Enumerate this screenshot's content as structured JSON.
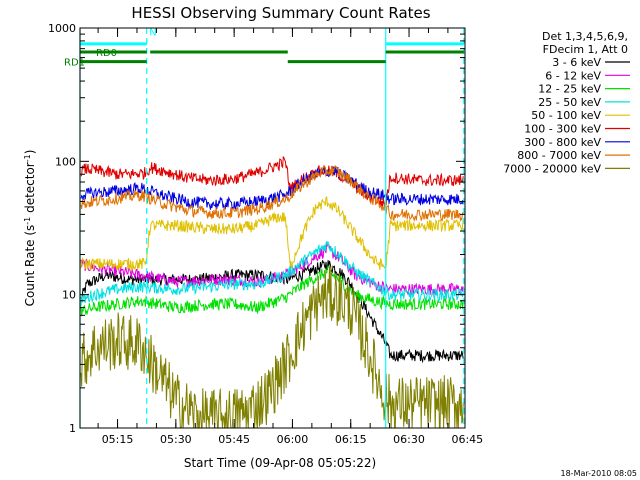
{
  "chart_data": {
    "type": "line",
    "title": "HESSI Observing Summary Count Rates",
    "xlabel": "Start Time (09-Apr-08 05:05:22)",
    "ylabel_parts": [
      "Count Rate (s",
      "-1",
      " detector",
      "-1",
      ")"
    ],
    "y_scale": "log",
    "ylim": [
      1,
      1000
    ],
    "xlim": [
      5.089,
      6.74
    ],
    "y_ticks": [
      {
        "v": 1,
        "label": "1"
      },
      {
        "v": 10,
        "label": "10"
      },
      {
        "v": 100,
        "label": "100"
      },
      {
        "v": 1000,
        "label": "1000"
      }
    ],
    "x_ticks": [
      {
        "v": 5.25,
        "label": "05:15"
      },
      {
        "v": 5.5,
        "label": "05:30"
      },
      {
        "v": 5.75,
        "label": "05:45"
      },
      {
        "v": 6.0,
        "label": "06:00"
      },
      {
        "v": 6.25,
        "label": "06:15"
      },
      {
        "v": 6.5,
        "label": "06:30"
      },
      {
        "v": 6.75,
        "label": "06:45"
      }
    ],
    "legend_header": [
      "Det 1,3,4,5,6,9,",
      "FDecim 1, Att 0"
    ],
    "legend_position": "right",
    "grid": false,
    "series": [
      {
        "name": "3 - 6 keV",
        "color": "#000000",
        "points": [
          [
            5.09,
            9
          ],
          [
            5.12,
            12
          ],
          [
            5.2,
            14
          ],
          [
            5.3,
            13
          ],
          [
            5.45,
            13
          ],
          [
            5.6,
            13
          ],
          [
            5.75,
            14
          ],
          [
            5.88,
            14
          ],
          [
            5.98,
            13
          ],
          [
            6.08,
            15
          ],
          [
            6.15,
            17
          ],
          [
            6.2,
            15
          ],
          [
            6.25,
            12
          ],
          [
            6.32,
            7.5
          ],
          [
            6.4,
            4.3
          ],
          [
            6.42,
            3.5
          ],
          [
            6.55,
            3.5
          ],
          [
            6.73,
            3.5
          ]
        ]
      },
      {
        "name": "6 - 12 keV",
        "color": "#e000e0",
        "points": [
          [
            5.09,
            17
          ],
          [
            5.15,
            16
          ],
          [
            5.25,
            15
          ],
          [
            5.35,
            14
          ],
          [
            5.5,
            12.5
          ],
          [
            5.65,
            13
          ],
          [
            5.75,
            13
          ],
          [
            5.85,
            12.5
          ],
          [
            5.97,
            14
          ],
          [
            6.05,
            17
          ],
          [
            6.15,
            22
          ],
          [
            6.2,
            19
          ],
          [
            6.27,
            14
          ],
          [
            6.35,
            12
          ],
          [
            6.42,
            11
          ],
          [
            6.55,
            11
          ],
          [
            6.73,
            11
          ]
        ]
      },
      {
        "name": "12 - 25 keV",
        "color": "#00e000",
        "points": [
          [
            5.09,
            7.5
          ],
          [
            5.15,
            8
          ],
          [
            5.25,
            8.5
          ],
          [
            5.35,
            9
          ],
          [
            5.5,
            8
          ],
          [
            5.65,
            8.5
          ],
          [
            5.75,
            8.5
          ],
          [
            5.85,
            8
          ],
          [
            5.97,
            9.5
          ],
          [
            6.05,
            12
          ],
          [
            6.15,
            15
          ],
          [
            6.2,
            13
          ],
          [
            6.27,
            10
          ],
          [
            6.35,
            9
          ],
          [
            6.42,
            8.5
          ],
          [
            6.55,
            8.5
          ],
          [
            6.73,
            8.5
          ]
        ]
      },
      {
        "name": "25 - 50 keV",
        "color": "#00e0e0",
        "points": [
          [
            5.09,
            9
          ],
          [
            5.15,
            10
          ],
          [
            5.25,
            11
          ],
          [
            5.35,
            11.5
          ],
          [
            5.5,
            11
          ],
          [
            5.65,
            11.5
          ],
          [
            5.75,
            12
          ],
          [
            5.85,
            12
          ],
          [
            5.97,
            14
          ],
          [
            6.05,
            18
          ],
          [
            6.15,
            24
          ],
          [
            6.2,
            20
          ],
          [
            6.27,
            15
          ],
          [
            6.35,
            12
          ],
          [
            6.42,
            10
          ],
          [
            6.55,
            10
          ],
          [
            6.73,
            10
          ]
        ]
      },
      {
        "name": "50 - 100 keV",
        "color": "#e0c000",
        "points": [
          [
            5.09,
            17
          ],
          [
            5.15,
            17
          ],
          [
            5.25,
            17
          ],
          [
            5.35,
            17
          ],
          [
            5.37,
            17
          ],
          [
            5.39,
            33
          ],
          [
            5.5,
            33
          ],
          [
            5.65,
            31
          ],
          [
            5.75,
            31
          ],
          [
            5.85,
            33
          ],
          [
            5.93,
            38
          ],
          [
            5.97,
            38
          ],
          [
            5.99,
            16
          ],
          [
            6.05,
            30
          ],
          [
            6.1,
            45
          ],
          [
            6.15,
            50
          ],
          [
            6.2,
            42
          ],
          [
            6.27,
            28
          ],
          [
            6.35,
            18
          ],
          [
            6.4,
            16
          ],
          [
            6.42,
            33
          ],
          [
            6.55,
            33
          ],
          [
            6.73,
            33
          ]
        ]
      },
      {
        "name": "100 - 300 keV",
        "color": "#e00000",
        "points": [
          [
            5.09,
            85
          ],
          [
            5.12,
            88
          ],
          [
            5.18,
            84
          ],
          [
            5.25,
            80
          ],
          [
            5.3,
            80
          ],
          [
            5.37,
            82
          ],
          [
            5.39,
            90
          ],
          [
            5.45,
            85
          ],
          [
            5.55,
            75
          ],
          [
            5.65,
            72
          ],
          [
            5.75,
            74
          ],
          [
            5.85,
            82
          ],
          [
            5.95,
            96
          ],
          [
            5.97,
            100
          ],
          [
            5.99,
            62
          ],
          [
            6.05,
            75
          ],
          [
            6.12,
            85
          ],
          [
            6.18,
            83
          ],
          [
            6.25,
            70
          ],
          [
            6.32,
            55
          ],
          [
            6.4,
            48
          ],
          [
            6.42,
            76
          ],
          [
            6.55,
            72
          ],
          [
            6.73,
            72
          ]
        ]
      },
      {
        "name": "300 - 800 keV",
        "color": "#0000e0",
        "points": [
          [
            5.09,
            56
          ],
          [
            5.15,
            58
          ],
          [
            5.25,
            60
          ],
          [
            5.35,
            63
          ],
          [
            5.45,
            55
          ],
          [
            5.55,
            50
          ],
          [
            5.65,
            48
          ],
          [
            5.75,
            48
          ],
          [
            5.85,
            50
          ],
          [
            5.97,
            56
          ],
          [
            6.05,
            72
          ],
          [
            6.12,
            83
          ],
          [
            6.18,
            85
          ],
          [
            6.25,
            72
          ],
          [
            6.32,
            60
          ],
          [
            6.4,
            55
          ],
          [
            6.42,
            52
          ],
          [
            6.55,
            52
          ],
          [
            6.73,
            52
          ]
        ]
      },
      {
        "name": "800 - 7000 keV",
        "color": "#e07000",
        "points": [
          [
            5.09,
            48
          ],
          [
            5.15,
            50
          ],
          [
            5.25,
            53
          ],
          [
            5.35,
            56
          ],
          [
            5.45,
            48
          ],
          [
            5.55,
            43
          ],
          [
            5.65,
            41
          ],
          [
            5.75,
            41
          ],
          [
            5.85,
            44
          ],
          [
            5.97,
            52
          ],
          [
            6.05,
            68
          ],
          [
            6.12,
            83
          ],
          [
            6.18,
            86
          ],
          [
            6.25,
            72
          ],
          [
            6.32,
            55
          ],
          [
            6.4,
            45
          ],
          [
            6.42,
            40
          ],
          [
            6.55,
            40
          ],
          [
            6.73,
            40
          ]
        ]
      },
      {
        "name": "7000 - 20000 keV",
        "color": "#808000",
        "points": [
          [
            5.09,
            3
          ],
          [
            5.15,
            4
          ],
          [
            5.25,
            4.5
          ],
          [
            5.35,
            4.2
          ],
          [
            5.4,
            3
          ],
          [
            5.45,
            2.2
          ],
          [
            5.5,
            1.6
          ],
          [
            5.6,
            1.2
          ],
          [
            5.7,
            1.2
          ],
          [
            5.8,
            1.3
          ],
          [
            5.9,
            1.8
          ],
          [
            5.97,
            3
          ],
          [
            6.05,
            6
          ],
          [
            6.12,
            9.5
          ],
          [
            6.18,
            10
          ],
          [
            6.25,
            8
          ],
          [
            6.32,
            4
          ],
          [
            6.38,
            2
          ],
          [
            6.42,
            1.5
          ],
          [
            6.55,
            1.5
          ],
          [
            6.73,
            1.5
          ]
        ]
      }
    ],
    "vertical_lines": [
      {
        "x": 5.089,
        "style": "solid",
        "color": "#00ffff"
      },
      {
        "x": 5.375,
        "style": "dashed",
        "color": "#00ffff"
      },
      {
        "x": 6.4,
        "style": "solid",
        "color": "#00ffff"
      },
      {
        "x": 6.735,
        "style": "dashed",
        "color": "#00ffff"
      }
    ],
    "flag_bars": [
      {
        "label": "",
        "color": "#00ffff",
        "y": 760,
        "segments": [
          [
            5.089,
            5.375
          ],
          [
            6.4,
            6.735
          ]
        ]
      },
      {
        "label": "RD0",
        "color": "#008000",
        "y": 660,
        "segments": [
          [
            5.089,
            5.375
          ],
          [
            5.39,
            5.98
          ],
          [
            6.4,
            6.735
          ]
        ]
      },
      {
        "label": "RD1",
        "color": "#008000",
        "y": 560,
        "segments": [
          [
            5.089,
            5.375
          ],
          [
            5.98,
            6.4
          ]
        ]
      }
    ],
    "flag_markers": [
      {
        "label": "N",
        "color": "#00ffff",
        "x": 5.39,
        "y": 880
      }
    ]
  },
  "footer": {
    "date_stamp": "18-Mar-2010 08:05"
  }
}
